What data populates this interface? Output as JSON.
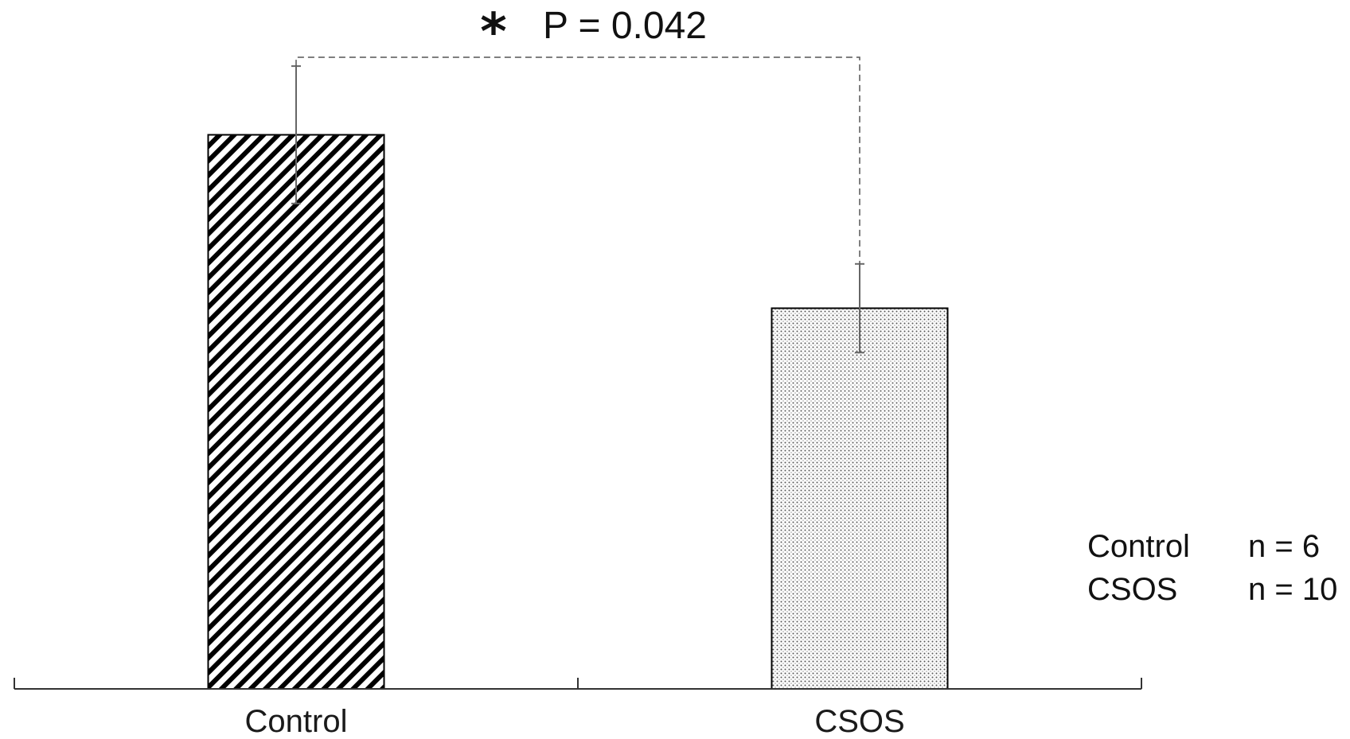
{
  "chart_data": {
    "type": "bar",
    "title": "",
    "xlabel": "",
    "ylabel": "",
    "categories": [
      "Control",
      "CSOS"
    ],
    "values": [
      100,
      68.7
    ],
    "errors": [
      12.4,
      8.0
    ],
    "ylim": [
      0,
      115
    ],
    "bar_patterns": [
      "diagonal-hatch",
      "dotted"
    ],
    "grid": false,
    "significance": {
      "star": "*",
      "label": "P = 0.042",
      "between": [
        "Control",
        "CSOS"
      ]
    },
    "legend": {
      "placement": "bottom-right",
      "entries": [
        {
          "group": "Control",
          "n_label": "n = 6"
        },
        {
          "group": "CSOS",
          "n_label": "n = 10"
        }
      ]
    },
    "colors": {
      "bar_outline": "#000000",
      "errorbar": "#666666",
      "axis": "#333333",
      "bracket": "#555555"
    }
  }
}
